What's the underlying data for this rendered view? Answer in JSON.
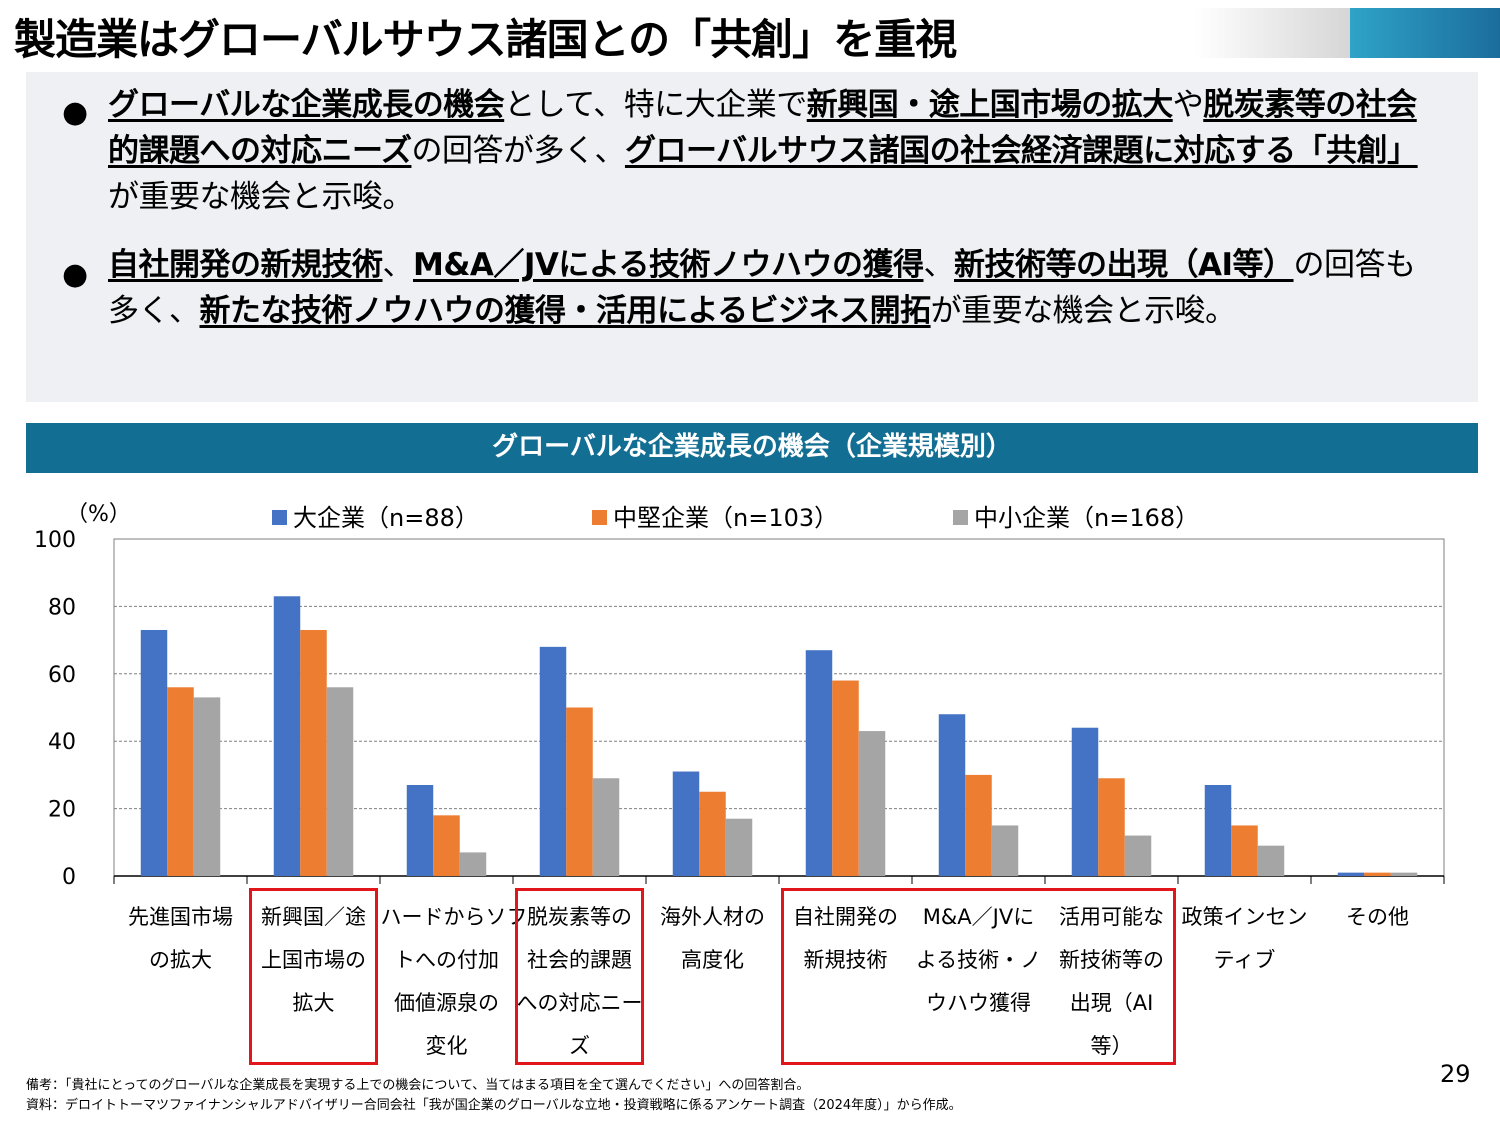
{
  "title": "製造業はグローバルサウス諸国との「共創」を重視",
  "summary": {
    "bullet1": [
      {
        "t": "グローバルな企業成長の機会",
        "u": true
      },
      {
        "t": "として、特に大企業で",
        "u": false
      },
      {
        "t": "新興国・途上国市場の拡大",
        "u": true
      },
      {
        "t": "や",
        "u": false
      },
      {
        "t": "脱炭素等の社会的課題への対応ニーズ",
        "u": true
      },
      {
        "t": "の回答が多く、",
        "u": false
      },
      {
        "t": "グローバルサウス諸国の社会経済課題に対応する「共創」",
        "u": true
      },
      {
        "t": "が重要な機会と示唆。",
        "u": false
      }
    ],
    "bullet2": [
      {
        "t": "自社開発の新規技術",
        "u": true
      },
      {
        "t": "、",
        "u": false
      },
      {
        "t": "M&A／JVによる技術ノウハウの獲得",
        "u": true
      },
      {
        "t": "、",
        "u": false
      },
      {
        "t": "新技術等の出現（AI等）",
        "u": true
      },
      {
        "t": "の回答も多く、",
        "u": false
      },
      {
        "t": "新たな技術ノウハウの獲得・活用によるビジネス開拓",
        "u": true
      },
      {
        "t": "が重要な機会と示唆。",
        "u": false
      }
    ]
  },
  "chart_header": "グローバルな企業成長の機会（企業規模別）",
  "chart_data": {
    "type": "bar",
    "title": "グローバルな企業成長の機会（企業規模別）",
    "ylabel": "（%）",
    "ylim": [
      0,
      100
    ],
    "yticks": [
      "0",
      "20",
      "40",
      "60",
      "80",
      "100"
    ],
    "grid": true,
    "legend_position": "top",
    "categories": [
      [
        "先進国市場",
        "の拡大"
      ],
      [
        "新興国／途",
        "上国市場の",
        "拡大"
      ],
      [
        "ハードからソフ",
        "トへの付加",
        "価値源泉の",
        "変化"
      ],
      [
        "脱炭素等の",
        "社会的課題",
        "への対応ニー",
        "ズ"
      ],
      [
        "海外人材の",
        "高度化"
      ],
      [
        "自社開発の",
        "新規技術"
      ],
      [
        "M&A／JVに",
        "よる技術・ノ",
        "ウハウ獲得"
      ],
      [
        "活用可能な",
        "新技術等の",
        "出現（AI",
        "等）"
      ],
      [
        "政策インセン",
        "ティブ"
      ],
      [
        "その他"
      ]
    ],
    "series": [
      {
        "name": "大企業（n=88）",
        "color": "#4472c4",
        "values": [
          73,
          83,
          27,
          68,
          31,
          67,
          48,
          44,
          27,
          1
        ]
      },
      {
        "name": "中堅企業（n=103）",
        "color": "#ed7d31",
        "values": [
          56,
          73,
          18,
          50,
          25,
          58,
          30,
          29,
          15,
          1
        ]
      },
      {
        "name": "中小企業（n=168）",
        "color": "#a5a5a5",
        "values": [
          53,
          56,
          7,
          29,
          17,
          43,
          15,
          12,
          9,
          1
        ]
      }
    ],
    "highlighted_categories": [
      [
        1
      ],
      [
        3
      ],
      [
        5,
        6,
        7
      ]
    ]
  },
  "page_number": "29",
  "notes": {
    "line1": "備考：「貴社にとってのグローバルな企業成長を実現する上での機会について、当てはまる項目を全て選んでください」への回答割合。",
    "line2": "資料：デロイトトーマツファイナンシャルアドバイザリー合同会社「我が国企業のグローバルな立地・投資戦略に係るアンケート調査（2024年度）」から作成。"
  }
}
